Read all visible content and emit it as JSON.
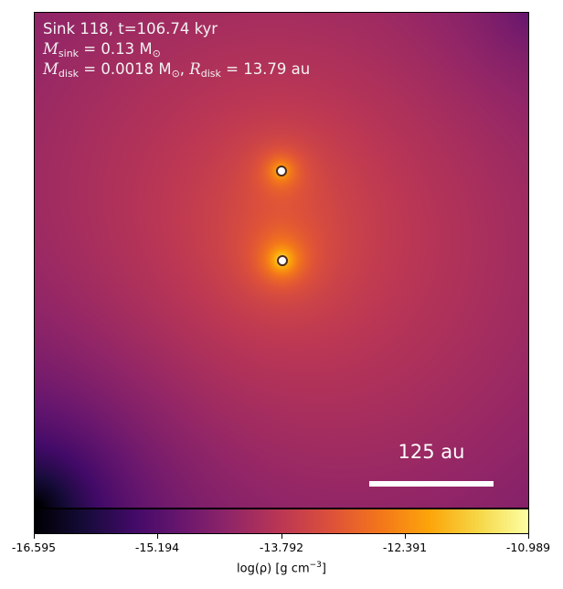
{
  "panel": {
    "title": "Sink 118, t=106.74 kyr",
    "mass_line": {
      "symbol": "M",
      "sub": "sink",
      "rest": " = 0.13 M",
      "unit_sub": "⊙"
    },
    "disk_line": {
      "m_symbol": "M",
      "m_sub": "disk",
      "m_rest": " = 0.0018 M",
      "m_unit_sub": "⊙",
      "sep": ", ",
      "r_symbol": "R",
      "r_sub": "disk",
      "r_rest": " = 13.79 au"
    },
    "scale_bar_label": "125 au"
  },
  "colormap": "inferno",
  "colorbar": {
    "min": -16.595,
    "max": -10.989,
    "ticks": [
      "-16.595",
      "-15.194",
      "-13.792",
      "-12.391",
      "-10.989"
    ],
    "label_main": "log(ρ) [g cm",
    "label_exp": "−3",
    "label_end": "]"
  }
}
